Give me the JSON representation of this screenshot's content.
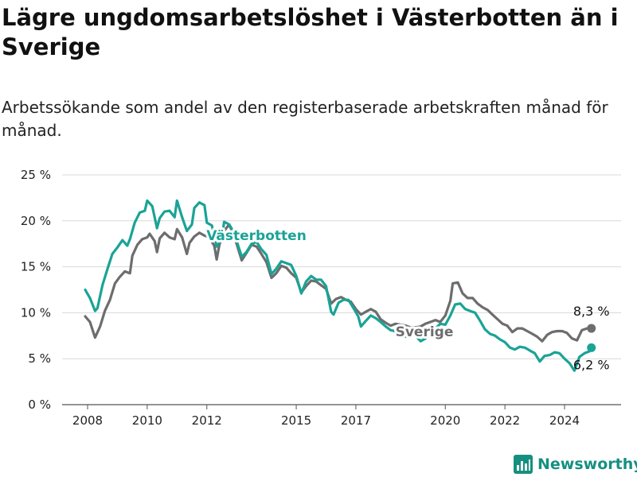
{
  "title": "Lägre ungdomsarbetslöshet i Västerbotten än i Sverige",
  "subtitle": "Arbetssökande som andel av den registerbaserade arbetskraften månad för månad.",
  "logo": "Newsworthy",
  "colors": {
    "vasterbotten": "#1aa396",
    "sverige": "#6d6d6d",
    "grid": "#d9d9d9",
    "logo": "#15907f"
  },
  "chart_data": {
    "type": "line",
    "ylim": [
      0,
      25
    ],
    "y_ticks": [
      "0 %",
      "5 %",
      "10 %",
      "15 %",
      "20 %",
      "25 %"
    ],
    "y_tick_values": [
      0,
      5,
      10,
      15,
      20,
      25
    ],
    "x_ticks": [
      "2008",
      "2010",
      "2012",
      "2015",
      "2017",
      "2020",
      "2022",
      "2024"
    ],
    "x_tick_values": [
      2008,
      2010,
      2012,
      2015,
      2017,
      2020,
      2022,
      2024
    ],
    "xlim": [
      2007.5,
      2025.2
    ],
    "grid": true,
    "series": [
      {
        "name": "Sverige",
        "key": "sverige",
        "end_label": "8,3 %",
        "points": [
          [
            2007.92,
            9.6
          ],
          [
            2008.08,
            9.0
          ],
          [
            2008.25,
            7.3
          ],
          [
            2008.42,
            8.5
          ],
          [
            2008.58,
            10.2
          ],
          [
            2008.75,
            11.4
          ],
          [
            2008.92,
            13.2
          ],
          [
            2009.08,
            13.9
          ],
          [
            2009.25,
            14.5
          ],
          [
            2009.42,
            14.3
          ],
          [
            2009.5,
            16.2
          ],
          [
            2009.67,
            17.4
          ],
          [
            2009.83,
            18.0
          ],
          [
            2010.0,
            18.2
          ],
          [
            2010.08,
            18.6
          ],
          [
            2010.25,
            17.8
          ],
          [
            2010.33,
            16.6
          ],
          [
            2010.42,
            18.1
          ],
          [
            2010.58,
            18.7
          ],
          [
            2010.75,
            18.2
          ],
          [
            2010.92,
            18.0
          ],
          [
            2011.0,
            19.1
          ],
          [
            2011.17,
            18.2
          ],
          [
            2011.33,
            16.4
          ],
          [
            2011.42,
            17.6
          ],
          [
            2011.58,
            18.3
          ],
          [
            2011.75,
            18.7
          ],
          [
            2011.92,
            18.4
          ],
          [
            2012.08,
            18.2
          ],
          [
            2012.25,
            17.3
          ],
          [
            2012.33,
            15.8
          ],
          [
            2012.42,
            17.4
          ],
          [
            2012.58,
            18.9
          ],
          [
            2012.75,
            19.6
          ],
          [
            2012.92,
            18.3
          ],
          [
            2013.0,
            17.5
          ],
          [
            2013.17,
            15.7
          ],
          [
            2013.33,
            16.5
          ],
          [
            2013.5,
            17.4
          ],
          [
            2013.67,
            17.2
          ],
          [
            2013.83,
            16.4
          ],
          [
            2014.0,
            15.5
          ],
          [
            2014.17,
            13.8
          ],
          [
            2014.33,
            14.3
          ],
          [
            2014.5,
            15.1
          ],
          [
            2014.67,
            14.9
          ],
          [
            2014.83,
            14.3
          ],
          [
            2015.0,
            13.8
          ],
          [
            2015.17,
            12.2
          ],
          [
            2015.33,
            12.9
          ],
          [
            2015.5,
            13.5
          ],
          [
            2015.67,
            13.4
          ],
          [
            2015.83,
            13.0
          ],
          [
            2016.0,
            12.6
          ],
          [
            2016.17,
            11.0
          ],
          [
            2016.33,
            11.5
          ],
          [
            2016.5,
            11.7
          ],
          [
            2016.67,
            11.4
          ],
          [
            2016.83,
            11.2
          ],
          [
            2017.0,
            10.4
          ],
          [
            2017.17,
            9.8
          ],
          [
            2017.33,
            10.1
          ],
          [
            2017.5,
            10.4
          ],
          [
            2017.67,
            10.1
          ],
          [
            2017.83,
            9.3
          ],
          [
            2018.0,
            8.9
          ],
          [
            2018.17,
            8.6
          ],
          [
            2018.33,
            8.8
          ],
          [
            2018.5,
            8.7
          ],
          [
            2018.67,
            8.6
          ],
          [
            2018.83,
            8.4
          ],
          [
            2019.0,
            8.4
          ],
          [
            2019.17,
            8.5
          ],
          [
            2019.33,
            8.8
          ],
          [
            2019.5,
            9.0
          ],
          [
            2019.67,
            9.2
          ],
          [
            2019.83,
            9.0
          ],
          [
            2020.0,
            9.7
          ],
          [
            2020.17,
            11.3
          ],
          [
            2020.25,
            13.2
          ],
          [
            2020.42,
            13.3
          ],
          [
            2020.58,
            12.1
          ],
          [
            2020.75,
            11.6
          ],
          [
            2020.92,
            11.6
          ],
          [
            2021.08,
            11.0
          ],
          [
            2021.25,
            10.6
          ],
          [
            2021.42,
            10.3
          ],
          [
            2021.58,
            9.8
          ],
          [
            2021.75,
            9.3
          ],
          [
            2021.92,
            8.8
          ],
          [
            2022.08,
            8.6
          ],
          [
            2022.25,
            7.9
          ],
          [
            2022.42,
            8.3
          ],
          [
            2022.58,
            8.3
          ],
          [
            2022.75,
            8.0
          ],
          [
            2022.92,
            7.7
          ],
          [
            2023.08,
            7.4
          ],
          [
            2023.25,
            6.9
          ],
          [
            2023.42,
            7.6
          ],
          [
            2023.58,
            7.9
          ],
          [
            2023.75,
            8.0
          ],
          [
            2023.92,
            8.0
          ],
          [
            2024.08,
            7.8
          ],
          [
            2024.25,
            7.2
          ],
          [
            2024.42,
            7.0
          ],
          [
            2024.58,
            8.1
          ],
          [
            2024.75,
            8.3
          ],
          [
            2024.9,
            8.3
          ]
        ]
      },
      {
        "name": "Västerbotten",
        "key": "vasterbotten",
        "end_label": "6,2 %",
        "points": [
          [
            2007.92,
            12.5
          ],
          [
            2008.08,
            11.6
          ],
          [
            2008.25,
            10.2
          ],
          [
            2008.33,
            10.5
          ],
          [
            2008.5,
            13.0
          ],
          [
            2008.67,
            14.8
          ],
          [
            2008.83,
            16.4
          ],
          [
            2009.0,
            17.1
          ],
          [
            2009.17,
            17.9
          ],
          [
            2009.33,
            17.3
          ],
          [
            2009.42,
            18.0
          ],
          [
            2009.58,
            19.8
          ],
          [
            2009.75,
            20.9
          ],
          [
            2009.92,
            21.1
          ],
          [
            2010.0,
            22.2
          ],
          [
            2010.17,
            21.6
          ],
          [
            2010.33,
            19.2
          ],
          [
            2010.42,
            20.3
          ],
          [
            2010.58,
            21.0
          ],
          [
            2010.75,
            21.1
          ],
          [
            2010.92,
            20.4
          ],
          [
            2011.0,
            22.2
          ],
          [
            2011.17,
            20.4
          ],
          [
            2011.33,
            18.9
          ],
          [
            2011.5,
            19.6
          ],
          [
            2011.58,
            21.4
          ],
          [
            2011.75,
            22.0
          ],
          [
            2011.92,
            21.7
          ],
          [
            2012.0,
            19.8
          ],
          [
            2012.17,
            19.5
          ],
          [
            2012.33,
            17.2
          ],
          [
            2012.5,
            18.0
          ],
          [
            2012.58,
            19.9
          ],
          [
            2012.75,
            19.6
          ],
          [
            2012.92,
            18.7
          ],
          [
            2013.0,
            17.8
          ],
          [
            2013.17,
            16.1
          ],
          [
            2013.33,
            16.6
          ],
          [
            2013.5,
            17.5
          ],
          [
            2013.67,
            17.7
          ],
          [
            2013.83,
            16.9
          ],
          [
            2014.0,
            16.3
          ],
          [
            2014.17,
            14.2
          ],
          [
            2014.33,
            14.8
          ],
          [
            2014.5,
            15.6
          ],
          [
            2014.67,
            15.4
          ],
          [
            2014.83,
            15.2
          ],
          [
            2015.0,
            14.0
          ],
          [
            2015.17,
            12.1
          ],
          [
            2015.33,
            13.4
          ],
          [
            2015.5,
            14.0
          ],
          [
            2015.67,
            13.6
          ],
          [
            2015.83,
            13.6
          ],
          [
            2016.0,
            12.9
          ],
          [
            2016.17,
            10.1
          ],
          [
            2016.25,
            9.8
          ],
          [
            2016.42,
            11.1
          ],
          [
            2016.58,
            11.4
          ],
          [
            2016.75,
            11.4
          ],
          [
            2016.92,
            10.5
          ],
          [
            2017.08,
            9.6
          ],
          [
            2017.17,
            8.5
          ],
          [
            2017.33,
            9.1
          ],
          [
            2017.5,
            9.7
          ],
          [
            2017.67,
            9.4
          ],
          [
            2017.83,
            9.0
          ],
          [
            2018.0,
            8.5
          ],
          [
            2018.17,
            8.1
          ],
          [
            2018.33,
            8.0
          ],
          [
            2018.5,
            7.8
          ],
          [
            2018.67,
            7.4
          ],
          [
            2018.83,
            7.6
          ],
          [
            2019.0,
            7.5
          ],
          [
            2019.17,
            6.9
          ],
          [
            2019.33,
            7.2
          ],
          [
            2019.5,
            7.7
          ],
          [
            2019.67,
            8.3
          ],
          [
            2019.83,
            8.8
          ],
          [
            2020.0,
            8.7
          ],
          [
            2020.17,
            9.7
          ],
          [
            2020.33,
            10.9
          ],
          [
            2020.5,
            11.0
          ],
          [
            2020.67,
            10.4
          ],
          [
            2020.83,
            10.2
          ],
          [
            2021.0,
            10.0
          ],
          [
            2021.17,
            9.1
          ],
          [
            2021.33,
            8.2
          ],
          [
            2021.5,
            7.7
          ],
          [
            2021.67,
            7.5
          ],
          [
            2021.83,
            7.1
          ],
          [
            2022.0,
            6.8
          ],
          [
            2022.17,
            6.2
          ],
          [
            2022.33,
            6.0
          ],
          [
            2022.5,
            6.3
          ],
          [
            2022.67,
            6.2
          ],
          [
            2022.83,
            5.9
          ],
          [
            2023.0,
            5.6
          ],
          [
            2023.17,
            4.7
          ],
          [
            2023.33,
            5.3
          ],
          [
            2023.5,
            5.4
          ],
          [
            2023.67,
            5.7
          ],
          [
            2023.83,
            5.6
          ],
          [
            2024.0,
            5.0
          ],
          [
            2024.17,
            4.5
          ],
          [
            2024.33,
            3.7
          ],
          [
            2024.5,
            5.2
          ],
          [
            2024.67,
            5.6
          ],
          [
            2024.83,
            5.8
          ],
          [
            2024.9,
            6.2
          ]
        ]
      }
    ]
  }
}
